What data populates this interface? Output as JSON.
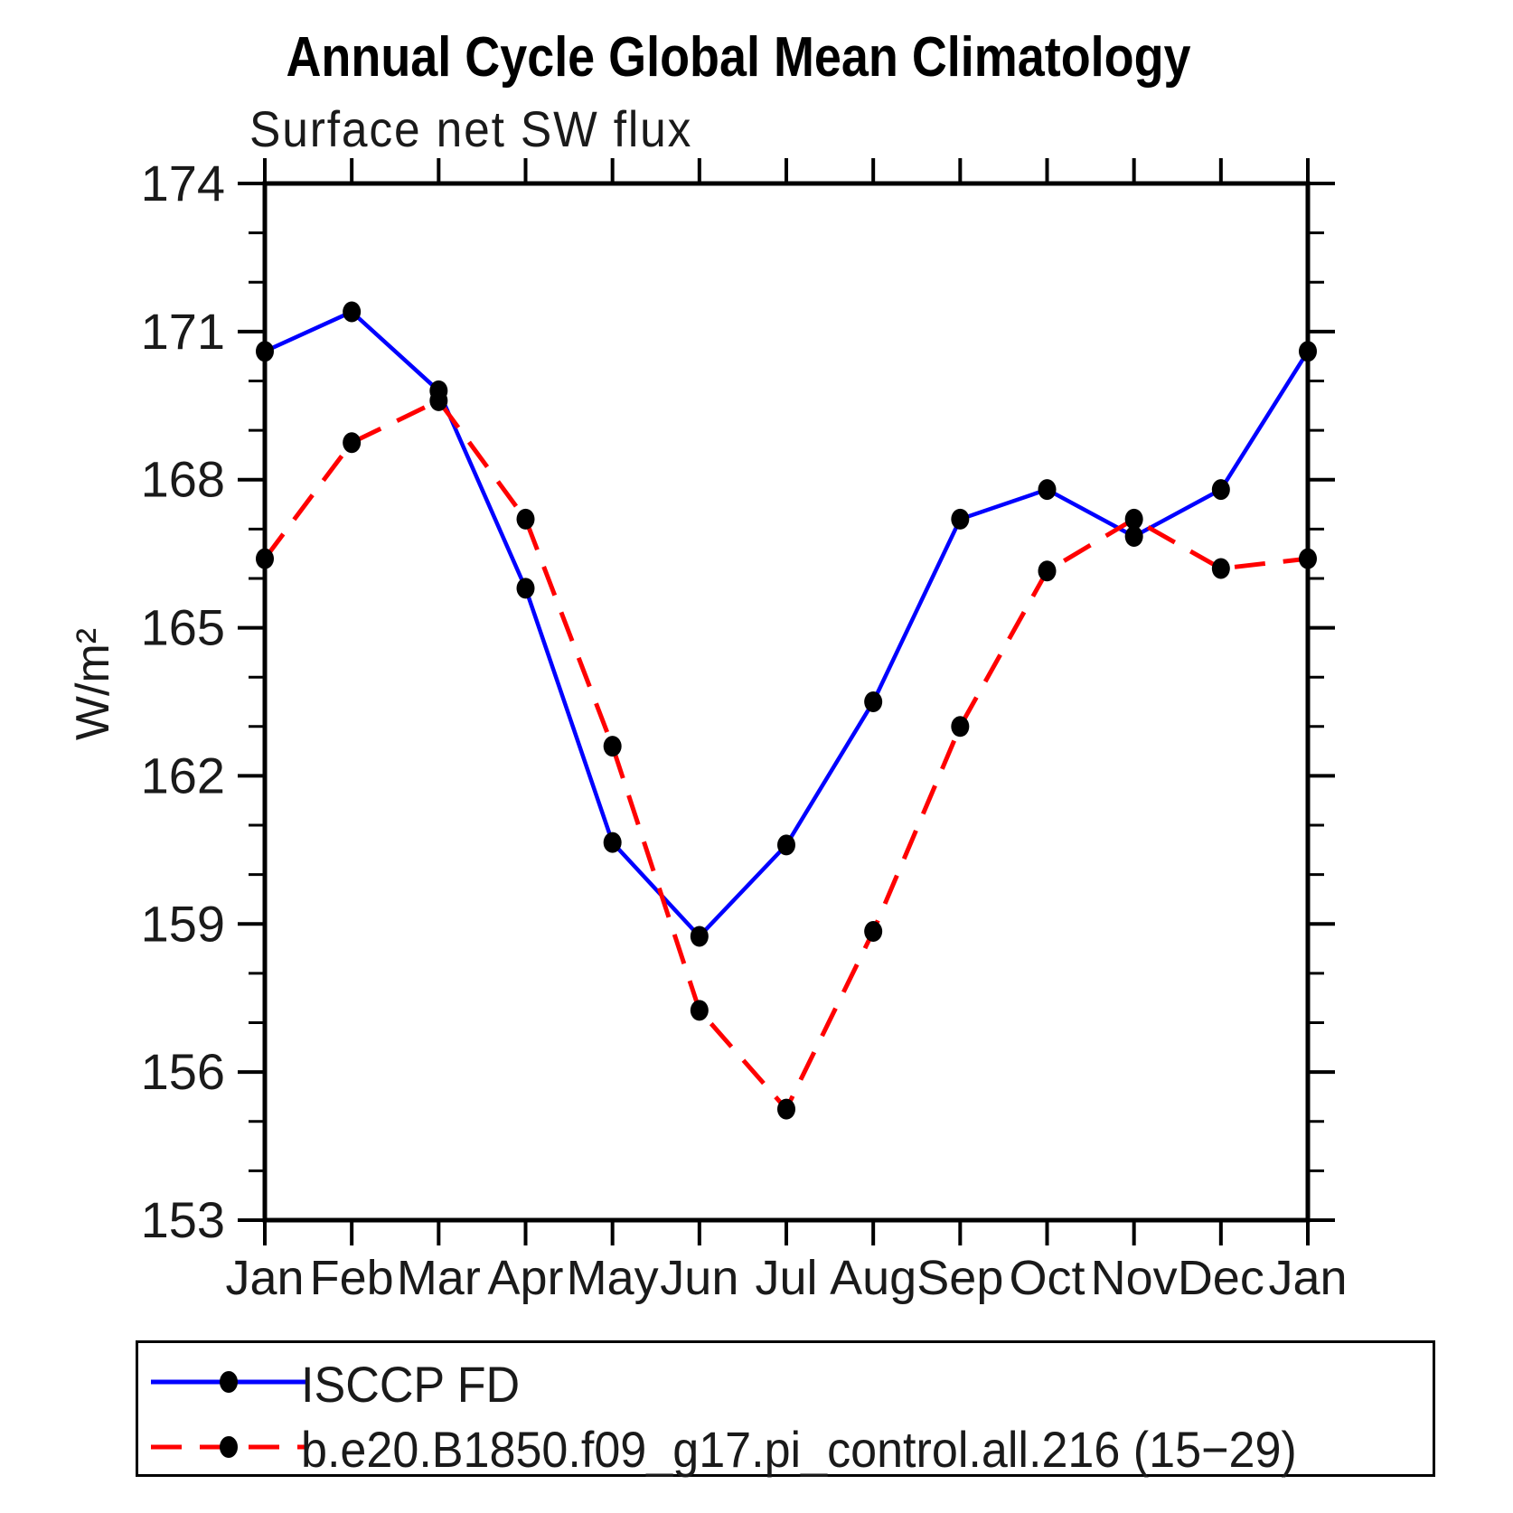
{
  "header": {
    "title": "Annual Cycle Global Mean Climatology",
    "subtitle": "Surface net SW flux"
  },
  "chart_data": {
    "type": "line",
    "title": "Annual Cycle Global Mean Climatology",
    "subtitle": "Surface net SW flux",
    "xlabel": "",
    "ylabel": "W/m²",
    "x_categories": [
      "Jan",
      "Feb",
      "Mar",
      "Apr",
      "May",
      "Jun",
      "Jul",
      "Aug",
      "Sep",
      "Oct",
      "Nov",
      "Dec",
      "Jan"
    ],
    "y_major_ticks": [
      153,
      156,
      159,
      162,
      165,
      168,
      171,
      174
    ],
    "y_minor_step": 1,
    "ylim": [
      153,
      174
    ],
    "grid": false,
    "legend_position": "bottom",
    "axis_color": "#000000",
    "marker_color": "#000000",
    "series": [
      {
        "name": "ISCCP FD",
        "color": "#0000ff",
        "style": "solid",
        "marker": "filled-circle",
        "values": [
          170.6,
          171.4,
          169.8,
          165.8,
          160.65,
          158.75,
          160.6,
          163.5,
          167.2,
          167.8,
          166.85,
          167.8,
          170.6
        ]
      },
      {
        "name": "b.e20.B1850.f09_g17.pi_control.all.216 (15−29)",
        "color": "#ff0000",
        "style": "dashed",
        "marker": "filled-circle",
        "values": [
          166.4,
          168.75,
          169.6,
          167.2,
          162.6,
          157.25,
          155.25,
          158.85,
          163.0,
          166.15,
          167.2,
          166.2,
          166.4
        ]
      }
    ]
  }
}
